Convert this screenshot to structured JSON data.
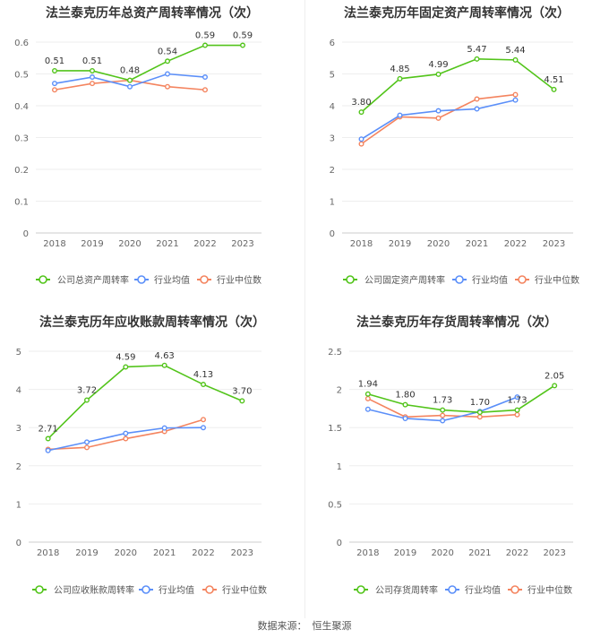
{
  "chart_data": [
    {
      "type": "line",
      "title": "法兰泰克历年总资产周转率情况（次）",
      "categories": [
        "2018",
        "2019",
        "2020",
        "2021",
        "2022",
        "2023"
      ],
      "ylim": [
        0,
        0.6
      ],
      "yticks": [
        "0",
        "0.1",
        "0.2",
        "0.3",
        "0.4",
        "0.5",
        "0.6"
      ],
      "series": [
        {
          "name": "公司总资产周转率",
          "color": "#52c41a",
          "values": [
            0.51,
            0.51,
            0.48,
            0.54,
            0.59,
            0.59
          ],
          "labels": [
            "0.51",
            "0.51",
            "0.48",
            "0.54",
            "0.59",
            "0.59"
          ]
        },
        {
          "name": "行业均值",
          "color": "#5b8ff9",
          "values": [
            0.47,
            0.49,
            0.46,
            0.5,
            0.49,
            null
          ]
        },
        {
          "name": "行业中位数",
          "color": "#f4845f",
          "values": [
            0.45,
            0.47,
            0.48,
            0.46,
            0.45,
            null
          ]
        }
      ],
      "grid": true,
      "legend_position": "bottom"
    },
    {
      "type": "line",
      "title": "法兰泰克历年固定资产周转率情况（次）",
      "categories": [
        "2018",
        "2019",
        "2020",
        "2021",
        "2022",
        "2023"
      ],
      "ylim": [
        0,
        6
      ],
      "yticks": [
        "0",
        "1",
        "2",
        "3",
        "4",
        "5",
        "6"
      ],
      "series": [
        {
          "name": "公司固定资产周转率",
          "color": "#52c41a",
          "values": [
            3.8,
            4.85,
            4.99,
            5.47,
            5.44,
            4.51
          ],
          "labels": [
            "3.80",
            "4.85",
            "4.99",
            "5.47",
            "5.44",
            "4.51"
          ]
        },
        {
          "name": "行业均值",
          "color": "#5b8ff9",
          "values": [
            2.95,
            3.7,
            3.84,
            3.9,
            4.18,
            null
          ]
        },
        {
          "name": "行业中位数",
          "color": "#f4845f",
          "values": [
            2.8,
            3.65,
            3.61,
            4.21,
            4.35,
            null
          ]
        }
      ],
      "grid": true,
      "legend_position": "bottom"
    },
    {
      "type": "line",
      "title": "法兰泰克历年应收账款周转率情况（次）",
      "categories": [
        "2018",
        "2019",
        "2020",
        "2021",
        "2022",
        "2023"
      ],
      "ylim": [
        0,
        5
      ],
      "yticks": [
        "0",
        "1",
        "2",
        "3",
        "4",
        "5"
      ],
      "series": [
        {
          "name": "公司应收账款周转率",
          "color": "#52c41a",
          "values": [
            2.71,
            3.72,
            4.59,
            4.63,
            4.13,
            3.7
          ],
          "labels": [
            "2.71",
            "3.72",
            "4.59",
            "4.63",
            "4.13",
            "3.70"
          ]
        },
        {
          "name": "行业均值",
          "color": "#5b8ff9",
          "values": [
            2.4,
            2.62,
            2.85,
            2.99,
            3.0,
            null
          ]
        },
        {
          "name": "行业中位数",
          "color": "#f4845f",
          "values": [
            2.43,
            2.48,
            2.71,
            2.9,
            3.21,
            null
          ]
        }
      ],
      "grid": true,
      "legend_position": "bottom"
    },
    {
      "type": "line",
      "title": "法兰泰克历年存货周转率情况（次）",
      "categories": [
        "2018",
        "2019",
        "2020",
        "2021",
        "2022",
        "2023"
      ],
      "ylim": [
        0,
        2.5
      ],
      "yticks": [
        "0",
        "0.5",
        "1",
        "1.5",
        "2",
        "2.5"
      ],
      "series": [
        {
          "name": "公司存货周转率",
          "color": "#52c41a",
          "values": [
            1.94,
            1.8,
            1.73,
            1.7,
            1.73,
            2.05
          ],
          "labels": [
            "1.94",
            "1.80",
            "1.73",
            "1.70",
            "1.73",
            "2.05"
          ]
        },
        {
          "name": "行业均值",
          "color": "#5b8ff9",
          "values": [
            1.74,
            1.62,
            1.59,
            1.71,
            1.9,
            null
          ]
        },
        {
          "name": "行业中位数",
          "color": "#f4845f",
          "values": [
            1.88,
            1.64,
            1.66,
            1.64,
            1.67,
            null
          ]
        }
      ],
      "grid": true,
      "legend_position": "bottom"
    }
  ],
  "footer": {
    "label": "数据来源：",
    "source": "恒生聚源"
  }
}
